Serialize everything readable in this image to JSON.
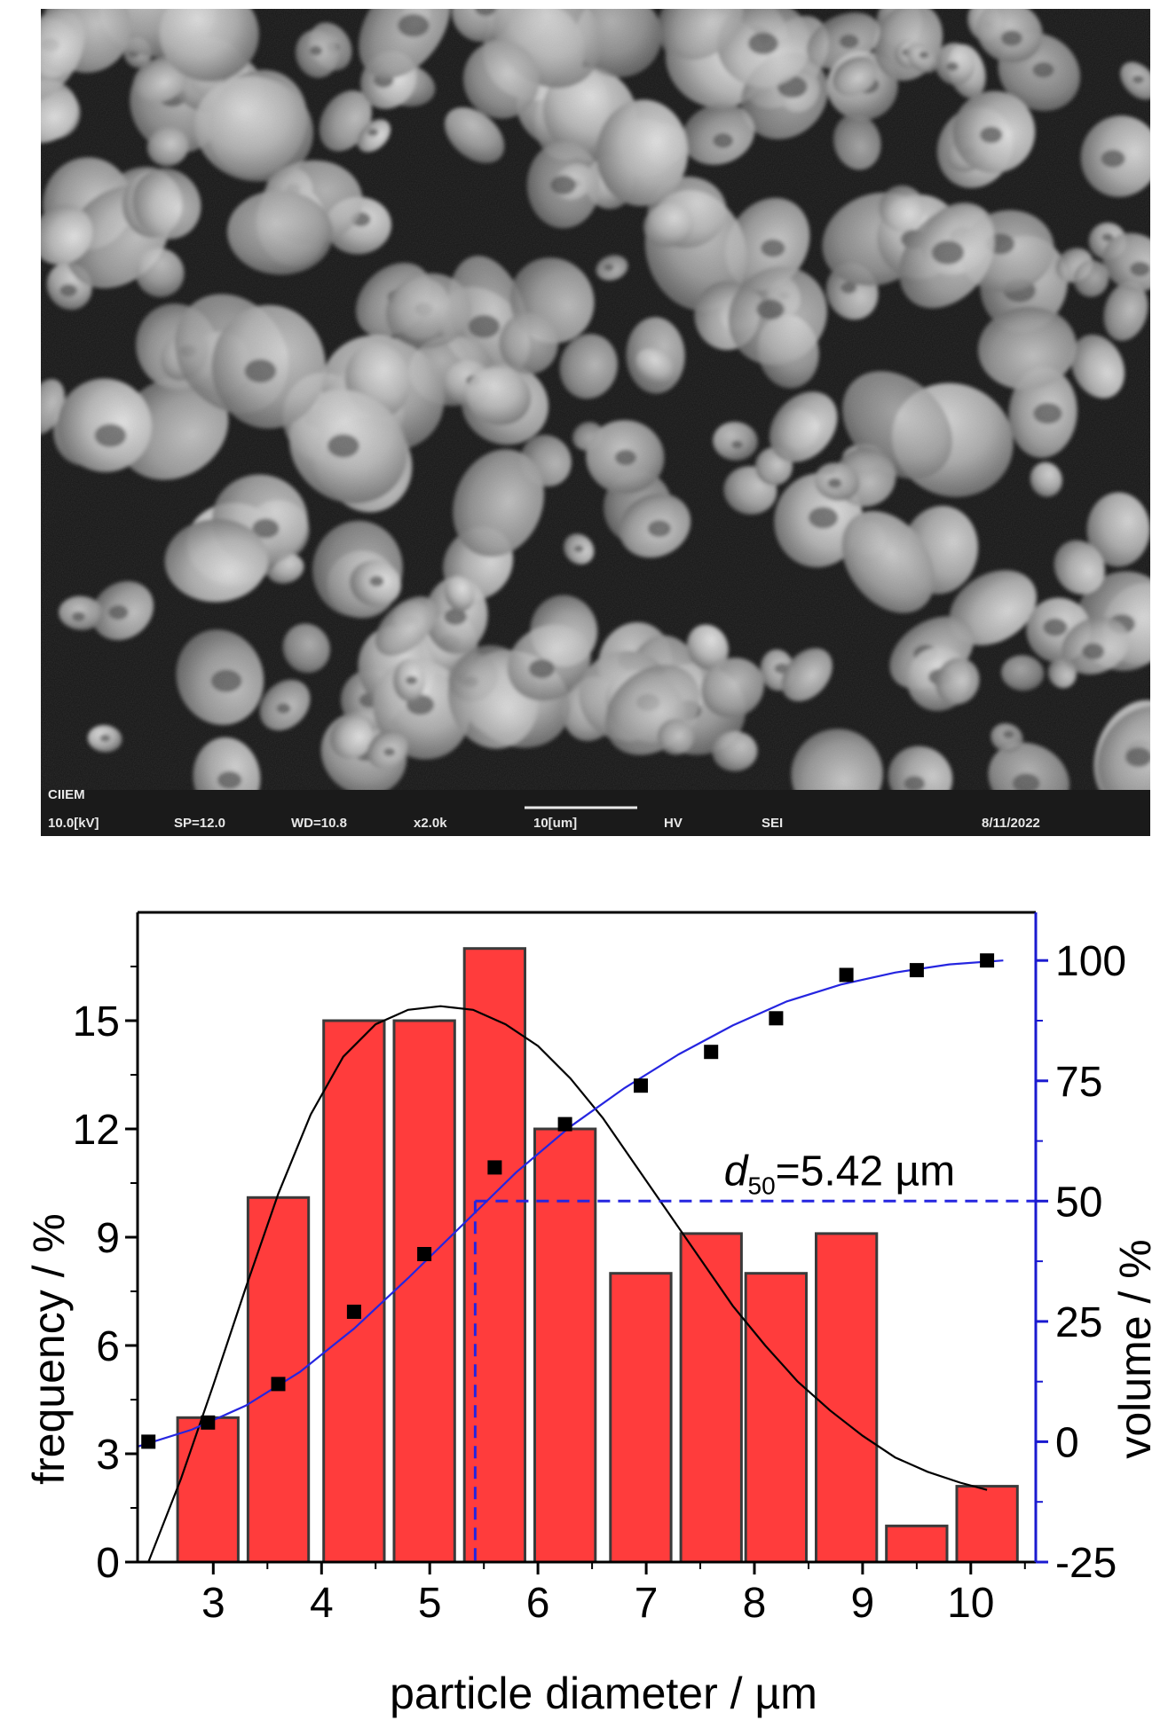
{
  "sem_image": {
    "info_bar": {
      "lab": "CIIEM",
      "voltage": "10.0[kV]",
      "spot": "SP=12.0",
      "working_distance": "WD=10.8",
      "magnification": "x2.0k",
      "scale_bar": "10[um]",
      "vacuum": "HV",
      "detector": "SEI",
      "date": "8/11/2022"
    }
  },
  "chart_data": {
    "type": "bar",
    "xlabel": "particle diameter / µm",
    "ylabel_left": "frequency / %",
    "ylabel_right": "volume / %",
    "xlim": [
      2.3,
      10.6
    ],
    "ylim_left": [
      0,
      18
    ],
    "ylim_right": [
      -25,
      110
    ],
    "x_ticks": [
      "3",
      "4",
      "5",
      "6",
      "7",
      "8",
      "9",
      "10"
    ],
    "y_ticks_left": [
      "0",
      "3",
      "6",
      "9",
      "12",
      "15"
    ],
    "y_ticks_right": [
      "-25",
      "0",
      "25",
      "50",
      "75",
      "100"
    ],
    "bars": {
      "x": [
        2.95,
        3.6,
        4.3,
        4.95,
        5.6,
        6.25,
        6.95,
        7.6,
        8.2,
        8.85,
        9.5,
        10.15
      ],
      "values": [
        4,
        10.1,
        15,
        15,
        17,
        12,
        8,
        9.1,
        8,
        9.1,
        1,
        2.1
      ],
      "color": "#ff3c3c",
      "edge_color": "#3a3a3a"
    },
    "cumulative_points": {
      "x": [
        2.4,
        2.95,
        3.6,
        4.3,
        4.95,
        5.6,
        6.25,
        6.95,
        7.6,
        8.2,
        8.85,
        9.5,
        10.15
      ],
      "values": [
        0,
        4,
        12,
        27,
        39,
        57,
        66,
        74,
        81,
        88,
        97,
        98,
        100
      ]
    },
    "cumulative_fit": {
      "x": [
        2.3,
        2.8,
        3.3,
        3.8,
        4.3,
        4.8,
        5.3,
        5.8,
        6.3,
        6.8,
        7.3,
        7.8,
        8.3,
        8.8,
        9.3,
        9.8,
        10.3
      ],
      "values": [
        -1,
        2.5,
        7.5,
        14.5,
        23.5,
        34,
        45,
        56,
        65.5,
        73.5,
        80.5,
        86.5,
        91.5,
        95,
        97.5,
        99.2,
        100
      ],
      "color": "#2525e0"
    },
    "distribution_fit": {
      "x": [
        2.4,
        2.7,
        3.0,
        3.3,
        3.6,
        3.9,
        4.2,
        4.5,
        4.8,
        5.1,
        5.4,
        5.7,
        6.0,
        6.3,
        6.6,
        6.9,
        7.2,
        7.5,
        7.8,
        8.1,
        8.4,
        8.7,
        9.0,
        9.3,
        9.6,
        9.9,
        10.15
      ],
      "values": [
        0,
        2.3,
        4.9,
        7.6,
        10.2,
        12.4,
        14.0,
        14.9,
        15.3,
        15.4,
        15.3,
        14.9,
        14.3,
        13.4,
        12.3,
        11.0,
        9.7,
        8.4,
        7.1,
        6.0,
        5.0,
        4.2,
        3.5,
        2.9,
        2.5,
        2.2,
        2.0
      ],
      "color": "#000000"
    },
    "d50": {
      "x": 5.42,
      "volume": 50,
      "label_symbol": "d",
      "label_subscript": "50",
      "label_value": "=5.42 µm",
      "color": "#2525e0"
    },
    "axis_colors": {
      "left": "#000000",
      "right": "#1a1ad0"
    }
  }
}
